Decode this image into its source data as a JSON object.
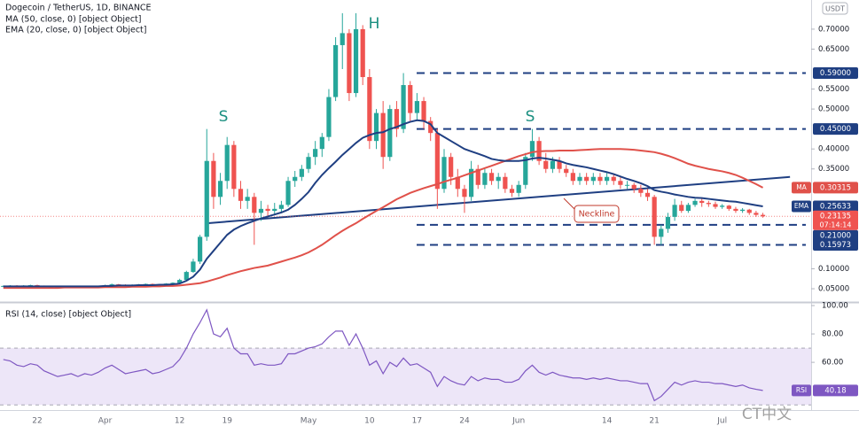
{
  "watermark": "CT中文",
  "chart_data": [
    {
      "type": "candlestick",
      "title": "Dogecoin / TetherUS, 1D, BINANCE",
      "currency": "USDT",
      "categories": [
        null,
        null,
        null,
        null,
        null,
        "22",
        null,
        null,
        null,
        null,
        null,
        null,
        null,
        null,
        null,
        "Apr",
        null,
        null,
        null,
        null,
        null,
        null,
        null,
        null,
        null,
        null,
        "12",
        null,
        null,
        null,
        null,
        null,
        null,
        "19",
        null,
        null,
        null,
        null,
        null,
        null,
        null,
        null,
        null,
        null,
        null,
        "May",
        null,
        null,
        null,
        null,
        null,
        null,
        null,
        null,
        "10",
        null,
        null,
        null,
        null,
        null,
        null,
        "17",
        null,
        null,
        null,
        null,
        null,
        null,
        "24",
        null,
        null,
        null,
        null,
        null,
        null,
        null,
        "Jun",
        null,
        null,
        null,
        null,
        null,
        null,
        null,
        null,
        null,
        null,
        null,
        null,
        "14",
        null,
        null,
        null,
        null,
        null,
        null,
        "21",
        null,
        null,
        null,
        null,
        null,
        null,
        null,
        null,
        null,
        "Jul",
        null,
        null,
        null,
        null,
        null,
        null
      ],
      "ohlc": [
        [
          0.056,
          0.058,
          0.055,
          0.057
        ],
        [
          0.057,
          0.059,
          0.056,
          0.058
        ],
        [
          0.058,
          0.059,
          0.056,
          0.057
        ],
        [
          0.057,
          0.059,
          0.056,
          0.058
        ],
        [
          0.058,
          0.06,
          0.057,
          0.059
        ],
        [
          0.059,
          0.06,
          0.056,
          0.057
        ],
        [
          0.057,
          0.058,
          0.055,
          0.056
        ],
        [
          0.056,
          0.057,
          0.054,
          0.055
        ],
        [
          0.055,
          0.056,
          0.053,
          0.054
        ],
        [
          0.054,
          0.056,
          0.053,
          0.055
        ],
        [
          0.055,
          0.057,
          0.054,
          0.056
        ],
        [
          0.056,
          0.057,
          0.055,
          0.056
        ],
        [
          0.056,
          0.057,
          0.054,
          0.055
        ],
        [
          0.055,
          0.056,
          0.053,
          0.054
        ],
        [
          0.054,
          0.056,
          0.053,
          0.055
        ],
        [
          0.055,
          0.06,
          0.054,
          0.058
        ],
        [
          0.058,
          0.063,
          0.057,
          0.061
        ],
        [
          0.061,
          0.062,
          0.059,
          0.06
        ],
        [
          0.06,
          0.061,
          0.058,
          0.059
        ],
        [
          0.059,
          0.061,
          0.058,
          0.06
        ],
        [
          0.06,
          0.062,
          0.059,
          0.061
        ],
        [
          0.061,
          0.063,
          0.06,
          0.062
        ],
        [
          0.062,
          0.063,
          0.059,
          0.06
        ],
        [
          0.06,
          0.062,
          0.059,
          0.061
        ],
        [
          0.061,
          0.064,
          0.06,
          0.063
        ],
        [
          0.063,
          0.066,
          0.062,
          0.065
        ],
        [
          0.065,
          0.075,
          0.064,
          0.072
        ],
        [
          0.072,
          0.095,
          0.07,
          0.092
        ],
        [
          0.092,
          0.125,
          0.09,
          0.118
        ],
        [
          0.118,
          0.185,
          0.112,
          0.18
        ],
        [
          0.18,
          0.45,
          0.17,
          0.37
        ],
        [
          0.37,
          0.39,
          0.25,
          0.28
        ],
        [
          0.28,
          0.34,
          0.26,
          0.32
        ],
        [
          0.32,
          0.43,
          0.3,
          0.41
        ],
        [
          0.41,
          0.42,
          0.28,
          0.3
        ],
        [
          0.3,
          0.32,
          0.25,
          0.27
        ],
        [
          0.27,
          0.3,
          0.25,
          0.28
        ],
        [
          0.28,
          0.29,
          0.16,
          0.24
        ],
        [
          0.24,
          0.27,
          0.22,
          0.25
        ],
        [
          0.25,
          0.26,
          0.23,
          0.245
        ],
        [
          0.245,
          0.265,
          0.235,
          0.25
        ],
        [
          0.25,
          0.27,
          0.24,
          0.26
        ],
        [
          0.26,
          0.33,
          0.255,
          0.32
        ],
        [
          0.32,
          0.345,
          0.305,
          0.33
        ],
        [
          0.33,
          0.36,
          0.32,
          0.35
        ],
        [
          0.35,
          0.39,
          0.34,
          0.38
        ],
        [
          0.38,
          0.42,
          0.36,
          0.4
        ],
        [
          0.4,
          0.44,
          0.38,
          0.43
        ],
        [
          0.43,
          0.55,
          0.42,
          0.53
        ],
        [
          0.53,
          0.68,
          0.52,
          0.66
        ],
        [
          0.66,
          0.74,
          0.6,
          0.69
        ],
        [
          0.69,
          0.7,
          0.52,
          0.54
        ],
        [
          0.54,
          0.74,
          0.53,
          0.7
        ],
        [
          0.7,
          0.71,
          0.56,
          0.58
        ],
        [
          0.58,
          0.6,
          0.4,
          0.42
        ],
        [
          0.42,
          0.5,
          0.4,
          0.49
        ],
        [
          0.49,
          0.52,
          0.35,
          0.38
        ],
        [
          0.38,
          0.51,
          0.37,
          0.5
        ],
        [
          0.5,
          0.52,
          0.43,
          0.45
        ],
        [
          0.45,
          0.59,
          0.44,
          0.56
        ],
        [
          0.56,
          0.57,
          0.47,
          0.49
        ],
        [
          0.49,
          0.54,
          0.47,
          0.52
        ],
        [
          0.52,
          0.53,
          0.45,
          0.47
        ],
        [
          0.47,
          0.48,
          0.42,
          0.44
        ],
        [
          0.44,
          0.45,
          0.25,
          0.3
        ],
        [
          0.3,
          0.4,
          0.29,
          0.38
        ],
        [
          0.38,
          0.39,
          0.31,
          0.33
        ],
        [
          0.33,
          0.35,
          0.28,
          0.3
        ],
        [
          0.3,
          0.31,
          0.24,
          0.28
        ],
        [
          0.28,
          0.37,
          0.27,
          0.35
        ],
        [
          0.35,
          0.36,
          0.3,
          0.31
        ],
        [
          0.31,
          0.35,
          0.3,
          0.34
        ],
        [
          0.34,
          0.35,
          0.31,
          0.32
        ],
        [
          0.32,
          0.34,
          0.3,
          0.33
        ],
        [
          0.33,
          0.34,
          0.29,
          0.3
        ],
        [
          0.3,
          0.31,
          0.28,
          0.29
        ],
        [
          0.29,
          0.32,
          0.28,
          0.31
        ],
        [
          0.31,
          0.39,
          0.3,
          0.38
        ],
        [
          0.38,
          0.45,
          0.37,
          0.42
        ],
        [
          0.42,
          0.43,
          0.36,
          0.37
        ],
        [
          0.37,
          0.39,
          0.34,
          0.35
        ],
        [
          0.35,
          0.38,
          0.34,
          0.37
        ],
        [
          0.37,
          0.38,
          0.34,
          0.35
        ],
        [
          0.35,
          0.36,
          0.33,
          0.34
        ],
        [
          0.34,
          0.35,
          0.31,
          0.32
        ],
        [
          0.32,
          0.34,
          0.31,
          0.33
        ],
        [
          0.33,
          0.34,
          0.31,
          0.32
        ],
        [
          0.32,
          0.34,
          0.31,
          0.33
        ],
        [
          0.33,
          0.34,
          0.31,
          0.32
        ],
        [
          0.32,
          0.34,
          0.31,
          0.33
        ],
        [
          0.33,
          0.335,
          0.31,
          0.32
        ],
        [
          0.32,
          0.33,
          0.3,
          0.31
        ],
        [
          0.31,
          0.32,
          0.3,
          0.31
        ],
        [
          0.31,
          0.315,
          0.29,
          0.3
        ],
        [
          0.3,
          0.31,
          0.28,
          0.29
        ],
        [
          0.29,
          0.3,
          0.27,
          0.28
        ],
        [
          0.28,
          0.285,
          0.16,
          0.18
        ],
        [
          0.18,
          0.21,
          0.16,
          0.2
        ],
        [
          0.2,
          0.24,
          0.19,
          0.23
        ],
        [
          0.23,
          0.275,
          0.22,
          0.26
        ],
        [
          0.26,
          0.27,
          0.24,
          0.245
        ],
        [
          0.245,
          0.265,
          0.24,
          0.26
        ],
        [
          0.26,
          0.275,
          0.255,
          0.27
        ],
        [
          0.27,
          0.275,
          0.255,
          0.265
        ],
        [
          0.265,
          0.27,
          0.255,
          0.262
        ],
        [
          0.262,
          0.268,
          0.25,
          0.255
        ],
        [
          0.255,
          0.262,
          0.25,
          0.258
        ],
        [
          0.258,
          0.26,
          0.245,
          0.25
        ],
        [
          0.25,
          0.255,
          0.24,
          0.245
        ],
        [
          0.245,
          0.252,
          0.24,
          0.248
        ],
        [
          0.248,
          0.25,
          0.235,
          0.24
        ],
        [
          0.24,
          0.245,
          0.23,
          0.235
        ],
        [
          0.235,
          0.24,
          0.228,
          0.23135
        ]
      ],
      "up_color": "#26a69a",
      "down_color": "#ef5350",
      "series": [
        {
          "name": "MA (50, close, 0) [object Object]",
          "tag": "MA",
          "color": "#e0514a",
          "values": [
            0.052,
            0.052,
            0.052,
            0.052,
            0.052,
            0.052,
            0.052,
            0.052,
            0.052,
            0.053,
            0.053,
            0.053,
            0.053,
            0.053,
            0.053,
            0.054,
            0.054,
            0.054,
            0.054,
            0.055,
            0.055,
            0.055,
            0.056,
            0.056,
            0.057,
            0.057,
            0.058,
            0.06,
            0.062,
            0.064,
            0.068,
            0.073,
            0.078,
            0.084,
            0.089,
            0.094,
            0.098,
            0.102,
            0.105,
            0.108,
            0.113,
            0.118,
            0.123,
            0.128,
            0.134,
            0.141,
            0.15,
            0.16,
            0.172,
            0.184,
            0.195,
            0.205,
            0.214,
            0.225,
            0.235,
            0.245,
            0.254,
            0.264,
            0.274,
            0.282,
            0.29,
            0.296,
            0.302,
            0.307,
            0.312,
            0.318,
            0.323,
            0.328,
            0.334,
            0.34,
            0.346,
            0.352,
            0.358,
            0.364,
            0.37,
            0.376,
            0.382,
            0.387,
            0.392,
            0.394,
            0.395,
            0.395,
            0.396,
            0.396,
            0.396,
            0.397,
            0.398,
            0.399,
            0.4,
            0.4,
            0.4,
            0.4,
            0.399,
            0.398,
            0.396,
            0.394,
            0.392,
            0.388,
            0.383,
            0.377,
            0.37,
            0.363,
            0.358,
            0.354,
            0.35,
            0.347,
            0.344,
            0.34,
            0.335,
            0.328,
            0.32,
            0.312,
            0.30315
          ]
        },
        {
          "name": "EMA (20, close, 0) [object Object]",
          "tag": "EMA",
          "color": "#1f3f82",
          "values": [
            0.056,
            0.056,
            0.056,
            0.056,
            0.056,
            0.056,
            0.056,
            0.056,
            0.056,
            0.056,
            0.056,
            0.056,
            0.056,
            0.056,
            0.056,
            0.057,
            0.057,
            0.058,
            0.058,
            0.058,
            0.059,
            0.059,
            0.059,
            0.06,
            0.06,
            0.061,
            0.063,
            0.07,
            0.08,
            0.098,
            0.125,
            0.145,
            0.165,
            0.185,
            0.198,
            0.207,
            0.214,
            0.22,
            0.226,
            0.231,
            0.236,
            0.241,
            0.248,
            0.26,
            0.275,
            0.292,
            0.315,
            0.335,
            0.352,
            0.368,
            0.385,
            0.4,
            0.415,
            0.428,
            0.435,
            0.44,
            0.442,
            0.45,
            0.455,
            0.462,
            0.468,
            0.472,
            0.47,
            0.462,
            0.44,
            0.43,
            0.42,
            0.41,
            0.4,
            0.394,
            0.388,
            0.382,
            0.375,
            0.372,
            0.37,
            0.37,
            0.37,
            0.372,
            0.376,
            0.378,
            0.376,
            0.373,
            0.37,
            0.364,
            0.36,
            0.357,
            0.354,
            0.35,
            0.346,
            0.342,
            0.337,
            0.331,
            0.325,
            0.32,
            0.314,
            0.307,
            0.297,
            0.293,
            0.29,
            0.286,
            0.283,
            0.28,
            0.278,
            0.277,
            0.275,
            0.273,
            0.271,
            0.269,
            0.268,
            0.265,
            0.262,
            0.259,
            0.25633
          ]
        }
      ],
      "countdown": "07:14:14",
      "levels": [
        {
          "value": 0.59,
          "label": "0.59000"
        },
        {
          "value": 0.45,
          "label": "0.45000"
        },
        {
          "value": 0.21,
          "label": "0.21000"
        },
        0.15973
      ],
      "level_color": "#1f3f82",
      "neckline": {
        "label": "Neckline",
        "values": [
          0.214,
          0.33
        ]
      },
      "annotations": [
        "S",
        "H",
        "S"
      ],
      "ylim": [
        0.019,
        0.773
      ],
      "yticks": [
        {
          "value": 0.05,
          "label": "0.05000"
        },
        {
          "value": 0.1,
          "label": "0.10000"
        },
        {
          "value": 0.35,
          "label": "0.35000"
        },
        {
          "value": 0.4,
          "label": "0.40000"
        },
        {
          "value": 0.5,
          "label": "0.50000"
        },
        {
          "value": 0.55,
          "label": "0.55000"
        },
        {
          "value": 0.65,
          "label": "0.65000"
        },
        {
          "value": 0.7,
          "label": "0.70000"
        }
      ]
    },
    {
      "type": "line",
      "title": "RSI (14, close) [object Object]",
      "series": [
        {
          "name": "RSI",
          "color": "#7e57c2",
          "values": [
            62,
            61,
            58,
            57,
            59,
            58,
            54,
            52,
            50,
            51,
            52,
            50,
            52,
            51,
            53,
            56,
            58,
            55,
            52,
            53,
            54,
            55,
            52,
            53,
            55,
            57,
            62,
            70,
            80,
            88,
            97,
            80,
            78,
            84,
            70,
            66,
            66,
            58,
            59,
            58,
            58,
            59,
            66,
            66,
            68,
            70,
            71,
            73,
            78,
            82,
            82,
            72,
            80,
            70,
            58,
            61,
            52,
            60,
            57,
            63,
            58,
            59,
            56,
            53,
            43,
            50,
            47,
            45,
            44,
            50,
            47,
            49,
            48,
            48,
            46,
            46,
            48,
            54,
            58,
            53,
            51,
            53,
            51,
            50,
            49,
            49,
            48,
            49,
            48,
            49,
            48,
            47,
            47,
            46,
            45,
            45,
            33,
            36,
            41,
            46,
            44,
            46,
            47,
            46,
            46,
            45,
            45,
            44,
            43,
            44,
            42,
            41,
            40.18
          ]
        }
      ],
      "band": [
        30,
        70
      ],
      "band_color": "#ede6f8",
      "ylim": [
        27,
        100
      ],
      "yticks": [
        {
          "value": 100,
          "label": "100.00"
        },
        {
          "value": 80,
          "label": "80.00"
        },
        {
          "value": 60,
          "label": "60.00"
        }
      ]
    }
  ]
}
